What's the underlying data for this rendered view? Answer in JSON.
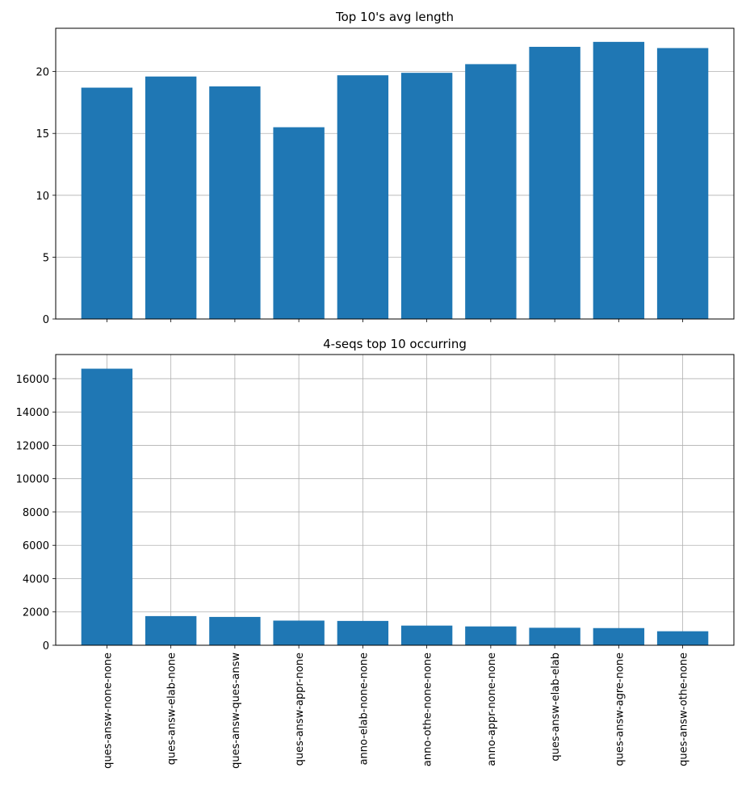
{
  "chart_data": [
    {
      "type": "bar",
      "title": "Top 10's avg length",
      "xlabel": "",
      "ylabel": "",
      "categories": [
        "ques-answ-none-none",
        "ques-answ-elab-none",
        "ques-answ-ques-answ",
        "ques-answ-appr-none",
        "anno-elab-none-none",
        "anno-othe-none-none",
        "anno-appr-none-none",
        "ques-answ-elab-elab",
        "ques-answ-agre-none",
        "ques-answ-othe-none"
      ],
      "values": [
        18.7,
        19.6,
        18.8,
        15.5,
        19.7,
        19.9,
        20.6,
        22.0,
        22.4,
        21.9
      ],
      "ylim": [
        0,
        23.5
      ],
      "yticks": [
        0,
        5,
        10,
        15,
        20
      ],
      "grid": "y",
      "show_xticklabels": false,
      "color": "#1f77b4"
    },
    {
      "type": "bar",
      "title": "4-seqs top 10 occurring",
      "xlabel": "",
      "ylabel": "",
      "categories": [
        "ques-answ-none-none",
        "ques-answ-elab-none",
        "ques-answ-ques-answ",
        "ques-answ-appr-none",
        "anno-elab-none-none",
        "anno-othe-none-none",
        "anno-appr-none-none",
        "ques-answ-elab-elab",
        "ques-answ-agre-none",
        "ques-answ-othe-none"
      ],
      "values": [
        16600,
        1750,
        1700,
        1480,
        1460,
        1180,
        1130,
        1050,
        1030,
        840
      ],
      "ylim": [
        0,
        17450
      ],
      "yticks": [
        0,
        2000,
        4000,
        6000,
        8000,
        10000,
        12000,
        14000,
        16000
      ],
      "grid": "both",
      "show_xticklabels": true,
      "color": "#1f77b4"
    }
  ]
}
